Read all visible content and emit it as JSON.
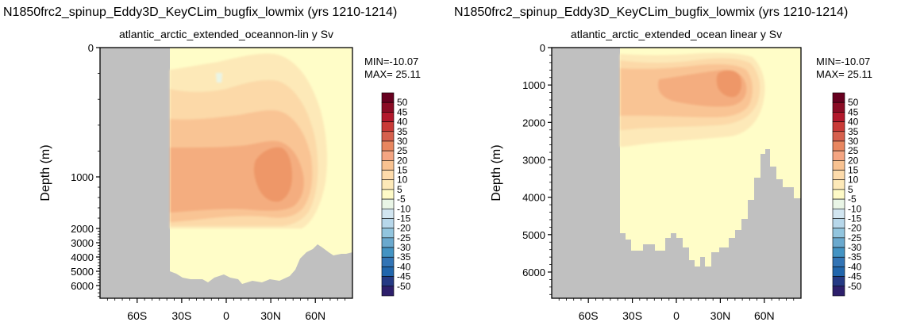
{
  "chart_data": [
    {
      "type": "contour",
      "title": "N1850frc2_spinup_Eddy3D_KeyCLim_bugfix_lowmix (yrs 1210-1214)",
      "subtitle": "atlantic_arctic_extended_oceannon-lin y Sv",
      "ylabel": "Depth (m)",
      "xlabel": "",
      "y_scale": "non-linear",
      "x_ticks": [
        "60S",
        "30S",
        "0",
        "30N",
        "60N"
      ],
      "x_tick_values": [
        -60,
        -30,
        0,
        30,
        60
      ],
      "y_ticks": [
        "0",
        "1000",
        "2000",
        "3000",
        "4000",
        "5000",
        "6000"
      ],
      "y_tick_values": [
        0,
        1000,
        2000,
        3000,
        4000,
        5000,
        6000
      ],
      "xlim": [
        -85,
        85
      ],
      "ylim": [
        0,
        6700
      ],
      "stats": {
        "min": "MIN=-10.07",
        "max": "MAX= 25.11"
      },
      "max_value": 25.11,
      "min_value": -10.07,
      "max_location": {
        "lat": 38,
        "depth": 1000
      }
    },
    {
      "type": "contour",
      "title": "N1850frc2_spinup_Eddy3D_KeyCLim_bugfix_lowmix (yrs 1210-1214)",
      "subtitle": "atlantic_arctic_extended_ocean linear y Sv",
      "ylabel": "Depth (m)",
      "xlabel": "",
      "y_scale": "linear",
      "x_ticks": [
        "60S",
        "30S",
        "0",
        "30N",
        "60N"
      ],
      "x_tick_values": [
        -60,
        -30,
        0,
        30,
        60
      ],
      "y_ticks": [
        "0",
        "1000",
        "2000",
        "3000",
        "4000",
        "5000",
        "6000"
      ],
      "y_tick_values": [
        0,
        1000,
        2000,
        3000,
        4000,
        5000,
        6000
      ],
      "xlim": [
        -85,
        85
      ],
      "ylim": [
        0,
        6700
      ],
      "stats": {
        "min": "MIN=-10.07",
        "max": "MAX= 25.11"
      },
      "max_value": 25.11,
      "min_value": -10.07,
      "max_location": {
        "lat": 38,
        "depth": 1000
      }
    }
  ],
  "colorbar": {
    "labels": [
      "50",
      "45",
      "40",
      "35",
      "30",
      "25",
      "20",
      "15",
      "10",
      "5",
      "-5",
      "-10",
      "-15",
      "-20",
      "-25",
      "-30",
      "-35",
      "-40",
      "-45",
      "-50"
    ],
    "colors": [
      "#67001f",
      "#8a0b24",
      "#b2182b",
      "#c93a37",
      "#d6604d",
      "#e8865f",
      "#f4a582",
      "#f8c291",
      "#fddbab",
      "#fde9b8",
      "#fefac7",
      "#e9f5e6",
      "#d1e5f0",
      "#b7d7ea",
      "#92c5de",
      "#6aa9ce",
      "#4393c3",
      "#3274b5",
      "#2166ac",
      "#253a84",
      "#2d1f6b"
    ]
  },
  "colors": {
    "land": "#c0c0c0",
    "level_0": "#fffdc8",
    "level_5": "#fde9b8",
    "level_10": "#fcd9a8",
    "level_15": "#f9c494",
    "level_20": "#f4ad7f",
    "level_25": "#ee9768"
  }
}
